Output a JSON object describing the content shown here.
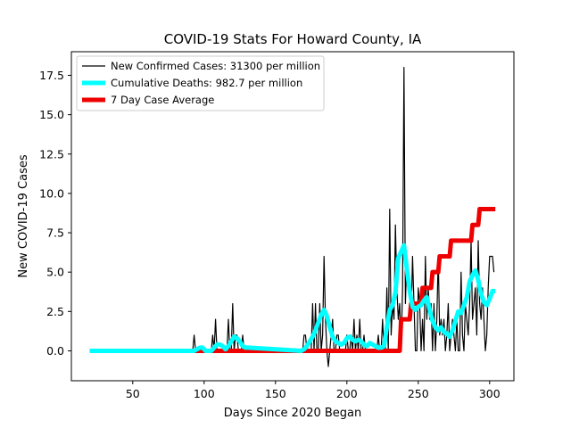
{
  "chart_data": {
    "type": "line",
    "title": "COVID-19 Stats For Howard County, IA",
    "xlabel": "Days Since 2020 Began",
    "ylabel": "New COVID-19 Cases",
    "xlim": [
      7,
      317
    ],
    "ylim": [
      -1.9,
      19.0
    ],
    "xticks": [
      50,
      100,
      150,
      200,
      250,
      300
    ],
    "yticks": [
      0.0,
      2.5,
      5.0,
      7.5,
      10.0,
      12.5,
      15.0,
      17.5
    ],
    "ytick_labels": [
      "0.0",
      "2.5",
      "5.0",
      "7.5",
      "10.0",
      "12.5",
      "15.0",
      "17.5"
    ],
    "grid": false,
    "legend_placement": "top-left",
    "series": [
      {
        "name": "New Confirmed Cases: 31300 per million",
        "color": "#000000",
        "line_width": "thin",
        "x": [
          20,
          91,
          92,
          93,
          94,
          95,
          96,
          97,
          98,
          99,
          100,
          101,
          102,
          103,
          104,
          105,
          106,
          107,
          108,
          109,
          110,
          111,
          112,
          113,
          114,
          115,
          116,
          117,
          118,
          119,
          120,
          121,
          122,
          123,
          124,
          125,
          126,
          127,
          128,
          129,
          130,
          131,
          168,
          169,
          170,
          171,
          172,
          173,
          174,
          175,
          176,
          177,
          178,
          179,
          180,
          181,
          182,
          183,
          184,
          185,
          186,
          187,
          188,
          189,
          190,
          191,
          192,
          193,
          194,
          195,
          196,
          197,
          198,
          199,
          200,
          201,
          202,
          203,
          204,
          205,
          206,
          207,
          208,
          209,
          210,
          211,
          212,
          213,
          214,
          215,
          216,
          217,
          218,
          219,
          220,
          221,
          222,
          223,
          224,
          225,
          226,
          227,
          228,
          229,
          230,
          231,
          232,
          233,
          234,
          235,
          236,
          237,
          238,
          239,
          240,
          241,
          242,
          243,
          244,
          245,
          246,
          247,
          248,
          249,
          250,
          251,
          252,
          253,
          254,
          255,
          256,
          257,
          258,
          259,
          260,
          261,
          262,
          263,
          264,
          265,
          266,
          267,
          268,
          269,
          270,
          271,
          272,
          273,
          274,
          275,
          276,
          277,
          278,
          279,
          280,
          281,
          282,
          283,
          284,
          285,
          286,
          287,
          288,
          289,
          290,
          291,
          292,
          293,
          294,
          295,
          296,
          297,
          298,
          299,
          300,
          301,
          302,
          303
        ],
        "y": [
          0,
          0,
          0,
          1,
          0,
          0,
          0,
          0,
          0,
          0,
          0,
          0,
          0,
          0,
          0,
          0,
          1,
          0,
          2,
          0,
          0,
          0,
          0,
          0,
          0,
          0,
          0,
          2,
          0,
          0,
          3,
          0,
          1,
          1,
          0,
          0,
          0,
          1,
          0,
          0,
          0,
          0,
          0,
          0,
          1,
          1,
          0,
          0,
          0,
          0,
          3,
          0,
          3,
          0,
          0,
          3,
          0,
          1,
          6,
          2,
          0,
          -1,
          0,
          1,
          2,
          0,
          0,
          1,
          1,
          0,
          0,
          0,
          0,
          0,
          1,
          0,
          0,
          1,
          0,
          2,
          0,
          1,
          0,
          2,
          0,
          0,
          1,
          0,
          0,
          0,
          0,
          0,
          0,
          0,
          0,
          0,
          1,
          0,
          0,
          2,
          0,
          0,
          4,
          0,
          9,
          1,
          3,
          2,
          8,
          4,
          2,
          3,
          0,
          4,
          18,
          3,
          6,
          4,
          4,
          2,
          6,
          3,
          0,
          0,
          4,
          3,
          0,
          2,
          0,
          6,
          2,
          4,
          2,
          3,
          0,
          3,
          0,
          2,
          6,
          1,
          2,
          1,
          2,
          0,
          1,
          3,
          0,
          1,
          2,
          1,
          0,
          2,
          0,
          0,
          5,
          1,
          0,
          3,
          2,
          1,
          3,
          7,
          2,
          3,
          4,
          1,
          7,
          3,
          2,
          4,
          2,
          0,
          1,
          4,
          6,
          6,
          6,
          5
        ]
      },
      {
        "name": "Cumulative Deaths: 982.7 per million",
        "color": "#00ffff",
        "line_width": "thick",
        "x": [
          20,
          91,
          93,
          95,
          97,
          99,
          101,
          103,
          105,
          107,
          109,
          111,
          113,
          115,
          117,
          119,
          121,
          123,
          125,
          127,
          129,
          131,
          168,
          170,
          172,
          174,
          176,
          178,
          180,
          182,
          184,
          186,
          188,
          190,
          192,
          194,
          196,
          198,
          200,
          202,
          204,
          206,
          208,
          210,
          212,
          214,
          216,
          218,
          220,
          222,
          224,
          226,
          228,
          230,
          232,
          234,
          236,
          238,
          240,
          242,
          244,
          246,
          248,
          250,
          252,
          254,
          256,
          258,
          260,
          262,
          264,
          266,
          268,
          270,
          272,
          274,
          276,
          278,
          280,
          282,
          284,
          286,
          288,
          290,
          292,
          294,
          296,
          298,
          300,
          302,
          304
        ],
        "y": [
          0,
          0,
          0,
          0.1,
          0.2,
          0.2,
          0,
          0,
          0,
          0.2,
          0.4,
          0.4,
          0.3,
          0.1,
          0.3,
          0.6,
          0.9,
          0.8,
          0.6,
          0.3,
          0.2,
          0.2,
          0,
          0.1,
          0.3,
          0.6,
          0.9,
          1.3,
          1.8,
          2.3,
          2.6,
          2.2,
          1.5,
          0.9,
          0.6,
          0.5,
          0.4,
          0.5,
          0.8,
          0.9,
          0.7,
          0.6,
          0.7,
          0.6,
          0.4,
          0.3,
          0.5,
          0.4,
          0.3,
          0.2,
          0.2,
          0.3,
          1.5,
          2.6,
          2.9,
          3.7,
          5.9,
          6.3,
          6.7,
          5.2,
          3.8,
          2.8,
          2.6,
          2.8,
          2.9,
          3.2,
          3.4,
          2.6,
          1.9,
          1.5,
          1.3,
          1.5,
          1.2,
          1.1,
          0.9,
          1.3,
          1.9,
          2.5,
          2.4,
          2.9,
          3.4,
          4.4,
          4.8,
          5.1,
          4.5,
          3.6,
          3.1,
          2.9,
          3.3,
          3.8,
          3.8
        ]
      },
      {
        "name": "7 Day Case Average",
        "color": "#ee0000",
        "line_width": "extra-thick",
        "step": true,
        "x": [
          20,
          237,
          238,
          244,
          245,
          252,
          253,
          259,
          260,
          264,
          265,
          272,
          273,
          287,
          288,
          292,
          293,
          304
        ],
        "y": [
          0,
          0,
          2,
          2,
          3,
          3,
          4,
          4,
          5,
          5,
          6,
          6,
          7,
          7,
          8,
          8,
          9,
          9
        ]
      }
    ]
  }
}
